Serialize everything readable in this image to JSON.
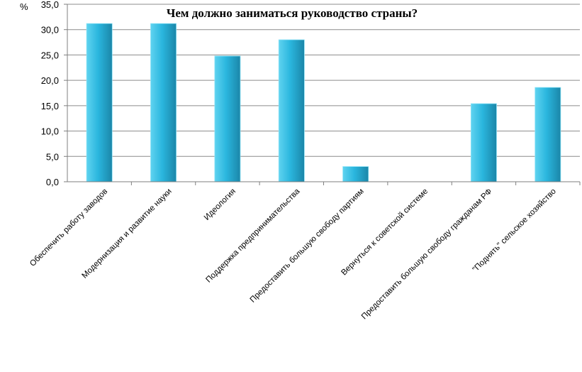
{
  "chart_data": {
    "type": "bar",
    "title": "Чем должно заниматься руководство страны?",
    "y_unit": "%",
    "ylim": [
      0,
      35
    ],
    "y_ticks": [
      "0,0",
      "5,0",
      "10,0",
      "15,0",
      "20,0",
      "25,0",
      "30,0",
      "35,0"
    ],
    "grid": true,
    "categories": [
      "Обеспечить работу заводов",
      "Модернизация и развитие науки",
      "Идеология",
      "Поддержка предпринимательства",
      "Предоставить большую свободу партиям",
      "Вернуться к советской системе",
      "Предоставить большую свободу гражданам РФ",
      "\"Поднять\" сельское хозяйство"
    ],
    "values": [
      31.2,
      31.2,
      24.8,
      28.0,
      3.0,
      0,
      15.4,
      18.6
    ],
    "colors": {
      "bar_light": "#5fd3f0",
      "bar_mid": "#2ab6de",
      "bar_dark": "#1b86a8",
      "grid": "#8c8c8c",
      "axis": "#7f7f7f"
    }
  }
}
